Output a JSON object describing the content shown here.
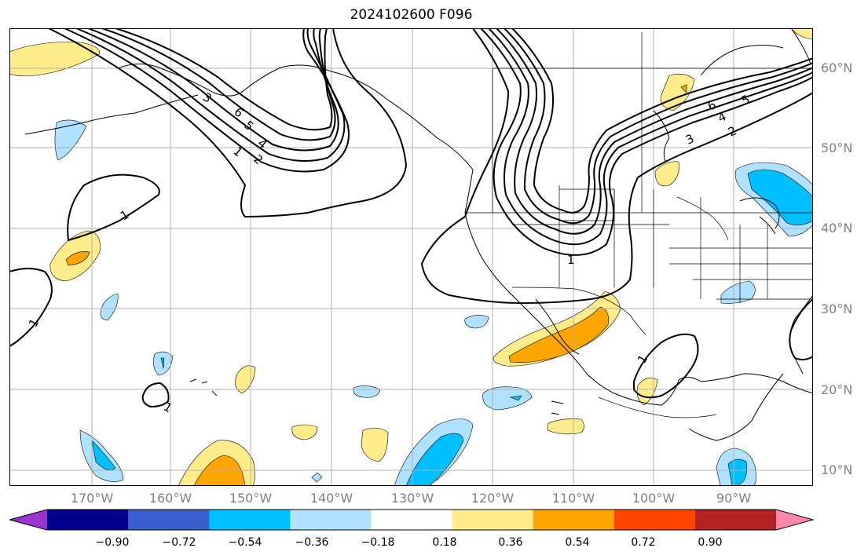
{
  "title": "2024102600 F096",
  "lat_labels": [
    "60°N",
    "50°N",
    "40°N",
    "30°N",
    "20°N",
    "10°N"
  ],
  "lon_labels": [
    "170°W",
    "160°W",
    "150°W",
    "140°W",
    "130°W",
    "120°W",
    "110°W",
    "100°W",
    "90°W"
  ],
  "colorbar": {
    "tick_labels": [
      "−0.90",
      "−0.72",
      "−0.54",
      "−0.36",
      "−0.18",
      "0.18",
      "0.36",
      "0.54",
      "0.72",
      "0.90"
    ],
    "colors": [
      "#9a32cd",
      "#00008b",
      "#3a5fcd",
      "#00bfff",
      "#b0e2ff",
      "#ffffff",
      "#ffec8b",
      "#ffa500",
      "#ff4500",
      "#b22222",
      "#ff88aa"
    ]
  },
  "contour_labels": [
    "1",
    "2",
    "3",
    "4",
    "5",
    "6",
    "1",
    "1",
    "1",
    "1",
    "2",
    "3",
    "4",
    "5",
    "6",
    "1"
  ]
}
